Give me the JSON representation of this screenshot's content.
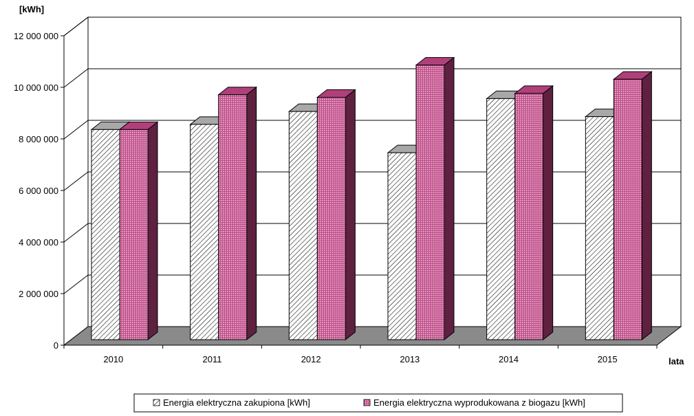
{
  "chart_data": {
    "type": "bar",
    "ylabel": "[kWh]",
    "xlabel": "lata",
    "categories": [
      "2010",
      "2011",
      "2012",
      "2013",
      "2014",
      "2015"
    ],
    "ylim": [
      0,
      12000000
    ],
    "yticks": [
      0,
      2000000,
      4000000,
      6000000,
      8000000,
      10000000,
      12000000
    ],
    "ytick_labels": [
      "0",
      "2 000 000",
      "4 000 000",
      "6 000 000",
      "8 000 000",
      "10 000 000",
      "12 000 000"
    ],
    "grid": true,
    "legend_position": "bottom",
    "series": [
      {
        "name": "Energia elektryczna zakupiona [kWh]",
        "values": [
          8150000,
          8350000,
          8850000,
          7250000,
          9350000,
          8650000
        ],
        "color": "#ffffff",
        "pattern": "hatch"
      },
      {
        "name": "Energia elektryczna wyprodukowana z biogazu [kWh]",
        "values": [
          8150000,
          9500000,
          9400000,
          10650000,
          9550000,
          10100000
        ],
        "color": "#b0407a",
        "pattern": "dots"
      }
    ]
  }
}
